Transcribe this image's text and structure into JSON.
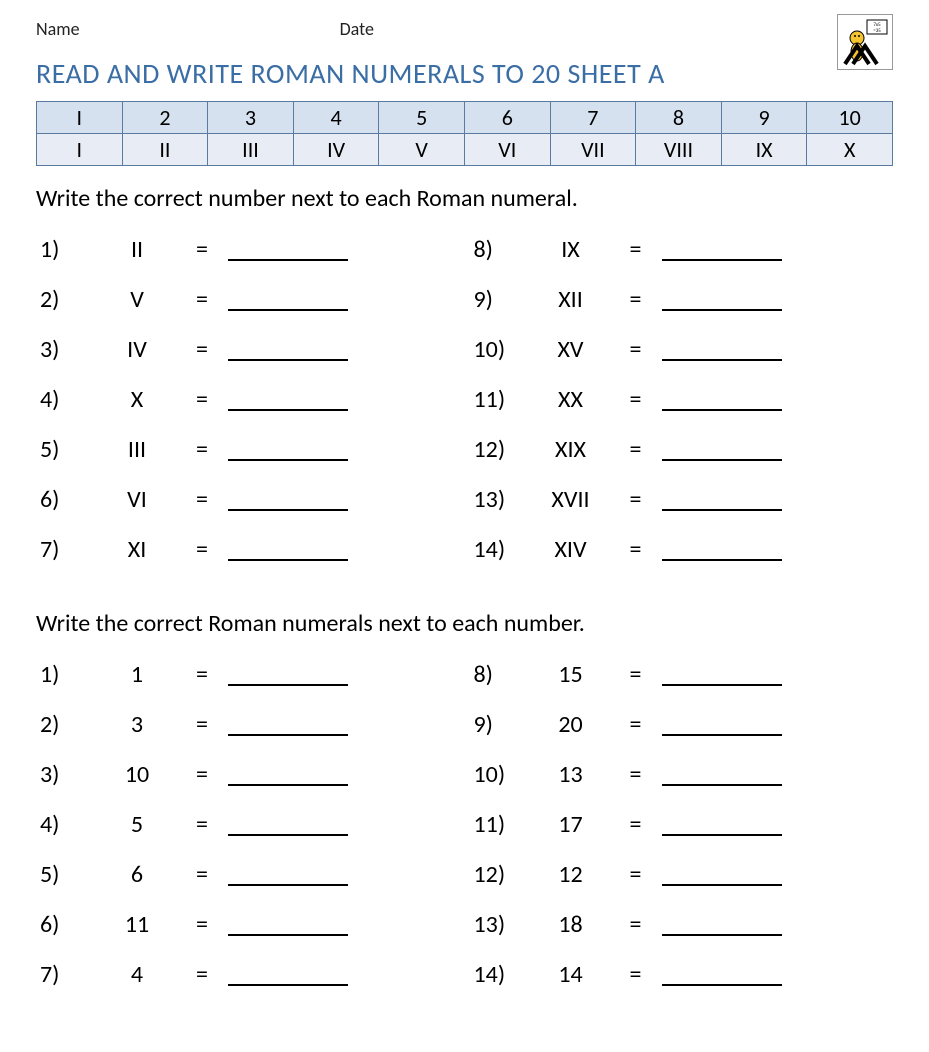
{
  "header": {
    "name_label": "Name",
    "date_label": "Date"
  },
  "title": "READ AND WRITE ROMAN NUMERALS TO 20 SHEET A",
  "colors": {
    "title": "#3a6ea5",
    "table_border": "#5a7aa0",
    "table_row1_bg": "#d6e1ef",
    "table_row2_bg": "#e8edf5",
    "text": "#000000",
    "background": "#ffffff"
  },
  "reference_table": {
    "row1": [
      "I",
      "2",
      "3",
      "4",
      "5",
      "6",
      "7",
      "8",
      "9",
      "10"
    ],
    "row2": [
      "I",
      "II",
      "III",
      "IV",
      "V",
      "VI",
      "VII",
      "VIII",
      "IX",
      "X"
    ]
  },
  "section1": {
    "instruction": "Write the correct number next to each Roman numeral.",
    "left": [
      {
        "n": "1)",
        "v": "II"
      },
      {
        "n": "2)",
        "v": "V"
      },
      {
        "n": "3)",
        "v": "IV"
      },
      {
        "n": "4)",
        "v": "X"
      },
      {
        "n": "5)",
        "v": "III"
      },
      {
        "n": "6)",
        "v": "VI"
      },
      {
        "n": "7)",
        "v": "XI"
      }
    ],
    "right": [
      {
        "n": "8)",
        "v": "IX"
      },
      {
        "n": "9)",
        "v": "XII"
      },
      {
        "n": "10)",
        "v": "XV"
      },
      {
        "n": "11)",
        "v": "XX"
      },
      {
        "n": "12)",
        "v": "XIX"
      },
      {
        "n": "13)",
        "v": "XVII"
      },
      {
        "n": "14)",
        "v": "XIV"
      }
    ]
  },
  "section2": {
    "instruction": "Write the correct Roman numerals next to each number.",
    "left": [
      {
        "n": "1)",
        "v": "1"
      },
      {
        "n": "2)",
        "v": "3"
      },
      {
        "n": "3)",
        "v": "10"
      },
      {
        "n": "4)",
        "v": "5"
      },
      {
        "n": "5)",
        "v": "6"
      },
      {
        "n": "6)",
        "v": "11"
      },
      {
        "n": "7)",
        "v": "4"
      }
    ],
    "right": [
      {
        "n": "8)",
        "v": "15"
      },
      {
        "n": "9)",
        "v": "20"
      },
      {
        "n": "10)",
        "v": "13"
      },
      {
        "n": "11)",
        "v": "17"
      },
      {
        "n": "12)",
        "v": "12"
      },
      {
        "n": "13)",
        "v": "18"
      },
      {
        "n": "14)",
        "v": "14"
      }
    ]
  },
  "eq": "="
}
